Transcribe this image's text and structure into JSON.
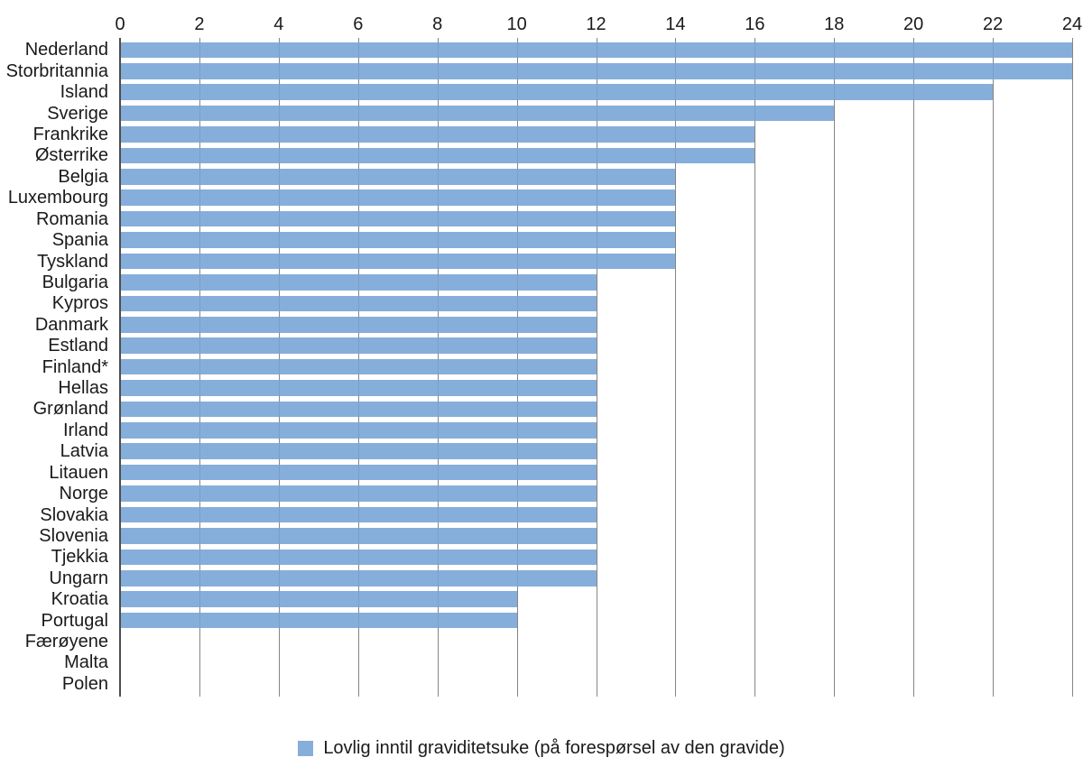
{
  "chart_data": {
    "type": "bar",
    "orientation": "horizontal",
    "title": "",
    "xlabel": "",
    "ylabel": "",
    "xlim": [
      0,
      24
    ],
    "xticks": [
      0,
      2,
      4,
      6,
      8,
      10,
      12,
      14,
      16,
      18,
      20,
      22,
      24
    ],
    "grid": true,
    "legend_position": "bottom",
    "legend": "Lovlig inntil graviditetsuke (på forespørsel av den gravide)",
    "categories": [
      "Nederland",
      "Storbritannia",
      "Island",
      "Sverige",
      "Frankrike",
      "Østerrike",
      "Belgia",
      "Luxembourg",
      "Romania",
      "Spania",
      "Tyskland",
      "Bulgaria",
      "Kypros",
      "Danmark",
      "Estland",
      "Finland*",
      "Hellas",
      "Grønland",
      "Irland",
      "Latvia",
      "Litauen",
      "Norge",
      "Slovakia",
      "Slovenia",
      "Tjekkia",
      "Ungarn",
      "Kroatia",
      "Portugal",
      "Færøyene",
      "Malta",
      "Polen"
    ],
    "values": [
      24,
      24,
      22,
      18,
      16,
      16,
      14,
      14,
      14,
      14,
      14,
      12,
      12,
      12,
      12,
      12,
      12,
      12,
      12,
      12,
      12,
      12,
      12,
      12,
      12,
      12,
      10,
      10,
      0,
      0,
      0
    ],
    "colors": {
      "bar": "#85AEDB",
      "gridline": "#8F8F8F",
      "axis_line": "#4D4D4D",
      "text": "#1A1A1A",
      "background": "#FFFFFF"
    }
  }
}
